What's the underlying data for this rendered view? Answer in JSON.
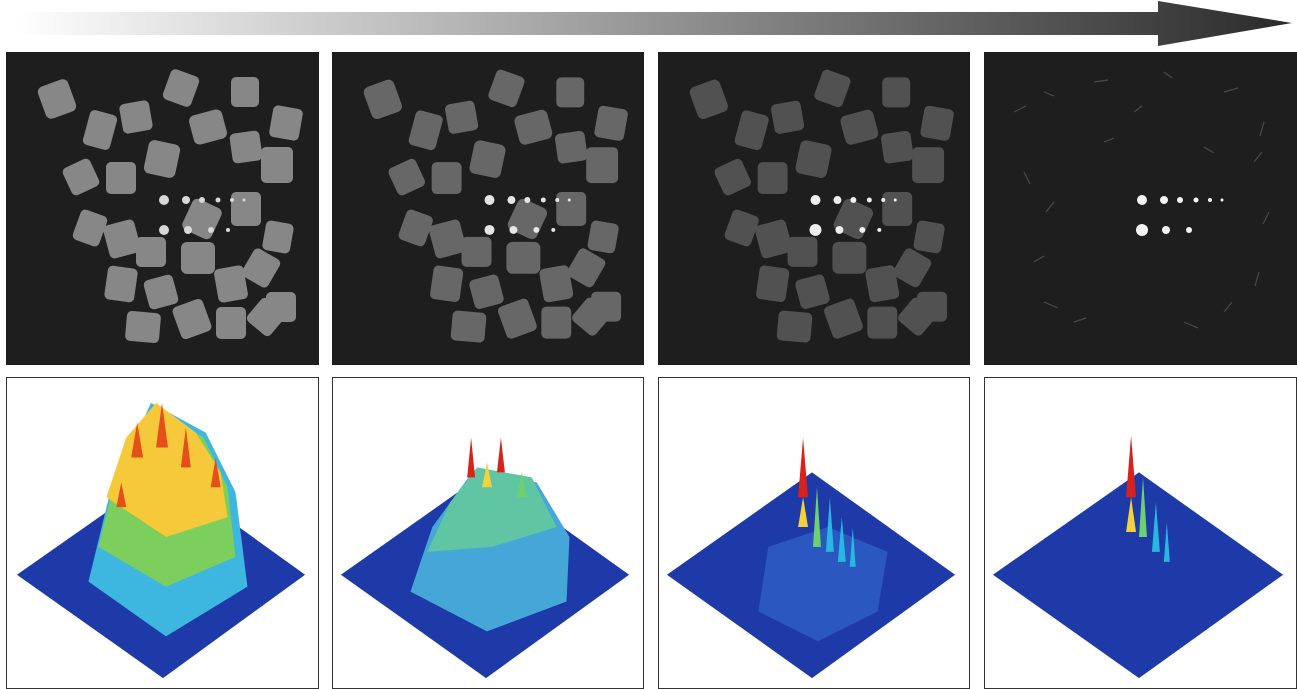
{
  "figure": {
    "progression_arrow": {
      "direction": "left-to-right",
      "gradient_from": "#ffffff",
      "gradient_to": "#2a2a2a"
    },
    "rows": [
      {
        "name": "grayscale-slices",
        "panel_count": 4,
        "background": "#1e1e1e"
      },
      {
        "name": "3d-surface-plots",
        "panel_count": 4,
        "background": "#ffffff",
        "colormap": [
          "#0a1e9c",
          "#1d52c8",
          "#25b8e0",
          "#6ed170",
          "#f3d23a",
          "#f07c1e",
          "#d8231c"
        ]
      }
    ],
    "panels": [
      {
        "id": "slice-1",
        "cube_brightness": 0.62,
        "spots_visible": true
      },
      {
        "id": "slice-2",
        "cube_brightness": 0.38,
        "spots_visible": true
      },
      {
        "id": "slice-3",
        "cube_brightness": 0.26,
        "spots_visible": true
      },
      {
        "id": "slice-4",
        "cube_brightness": 0.0,
        "spots_visible": true
      },
      {
        "id": "surface-1",
        "peak_level": 1.0
      },
      {
        "id": "surface-2",
        "peak_level": 0.7
      },
      {
        "id": "surface-3",
        "peak_level": 0.45
      },
      {
        "id": "surface-4",
        "peak_level": 0.4
      }
    ]
  }
}
